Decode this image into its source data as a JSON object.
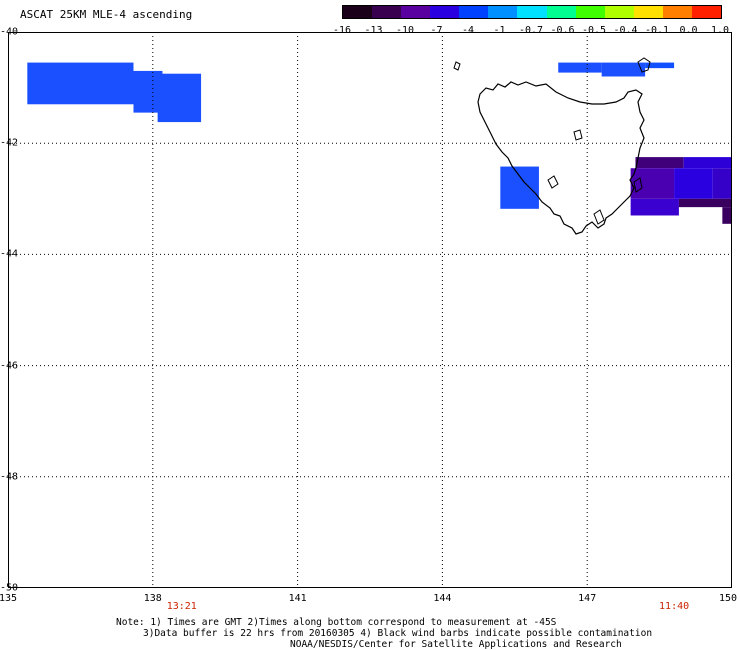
{
  "title": "ASCAT 25KM MLE-4 ascending",
  "colorbar": {
    "labels": [
      "-16",
      "-13",
      "-10",
      "-7",
      "-4",
      "-1",
      "-0.7",
      "-0.6",
      "-0.5",
      "-0.4",
      "-0.1",
      "0.0",
      "1.0"
    ],
    "colors": [
      "#1a0018",
      "#3a0050",
      "#5a00a0",
      "#2a00e0",
      "#0040ff",
      "#0090ff",
      "#00e0ff",
      "#00ff90",
      "#40ff00",
      "#b0ff00",
      "#ffe000",
      "#ff8000",
      "#ff2000"
    ]
  },
  "map": {
    "lon_ticks": [
      "135",
      "138",
      "141",
      "144",
      "147",
      "150"
    ],
    "lat_ticks": [
      "-40",
      "-42",
      "-44",
      "-46",
      "-48",
      "-50"
    ],
    "lon_range": [
      135,
      150
    ],
    "lat_range": [
      -40,
      -50
    ],
    "grid": "dotted",
    "coastline": "Tasmania"
  },
  "swath_cells": [
    {
      "lon0": 135.4,
      "lon1": 137.6,
      "lat0": -40.55,
      "lat1": -41.3,
      "color": "#1a50ff"
    },
    {
      "lon0": 137.6,
      "lon1": 138.2,
      "lat0": -40.7,
      "lat1": -41.45,
      "color": "#1a50ff"
    },
    {
      "lon0": 138.1,
      "lon1": 139.0,
      "lat0": -40.75,
      "lat1": -41.62,
      "color": "#1a50ff"
    },
    {
      "lon0": 146.4,
      "lon1": 147.3,
      "lat0": -40.55,
      "lat1": -40.73,
      "color": "#1a50ff"
    },
    {
      "lon0": 147.3,
      "lon1": 148.2,
      "lat0": -40.55,
      "lat1": -40.8,
      "color": "#1a50ff"
    },
    {
      "lon0": 148.2,
      "lon1": 148.8,
      "lat0": -40.55,
      "lat1": -40.65,
      "color": "#1050ff"
    },
    {
      "lon0": 145.2,
      "lon1": 146.0,
      "lat0": -42.42,
      "lat1": -43.18,
      "color": "#1a50ff"
    },
    {
      "lon0": 148.0,
      "lon1": 149.0,
      "lat0": -42.25,
      "lat1": -42.45,
      "color": "#40007a"
    },
    {
      "lon0": 149.0,
      "lon1": 150.0,
      "lat0": -42.25,
      "lat1": -42.45,
      "color": "#2e00d8"
    },
    {
      "lon0": 147.9,
      "lon1": 148.8,
      "lat0": -42.45,
      "lat1": -43.0,
      "color": "#4a00b0"
    },
    {
      "lon0": 148.8,
      "lon1": 149.6,
      "lat0": -42.45,
      "lat1": -43.0,
      "color": "#2a00e0"
    },
    {
      "lon0": 149.6,
      "lon1": 150.0,
      "lat0": -42.45,
      "lat1": -43.0,
      "color": "#3500c8"
    },
    {
      "lon0": 147.9,
      "lon1": 148.9,
      "lat0": -43.0,
      "lat1": -43.3,
      "color": "#3a00d0"
    },
    {
      "lon0": 148.9,
      "lon1": 150.0,
      "lat0": -43.0,
      "lat1": -43.15,
      "color": "#3a0060"
    },
    {
      "lon0": 149.8,
      "lon1": 150.0,
      "lat0": -43.15,
      "lat1": -43.45,
      "color": "#3a0060"
    }
  ],
  "time_labels": [
    {
      "text": "13:21",
      "lon": 138.6
    },
    {
      "text": "11:40",
      "lon": 148.8
    }
  ],
  "notes": [
    "Note: 1) Times are GMT 2)Times along bottom correspond to measurement at -45S",
    "3)Data buffer is 22 hrs from 20160305 4) Black wind barbs indicate possible contamination",
    "NOAA/NESDIS/Center for Satellite Applications and Research"
  ]
}
